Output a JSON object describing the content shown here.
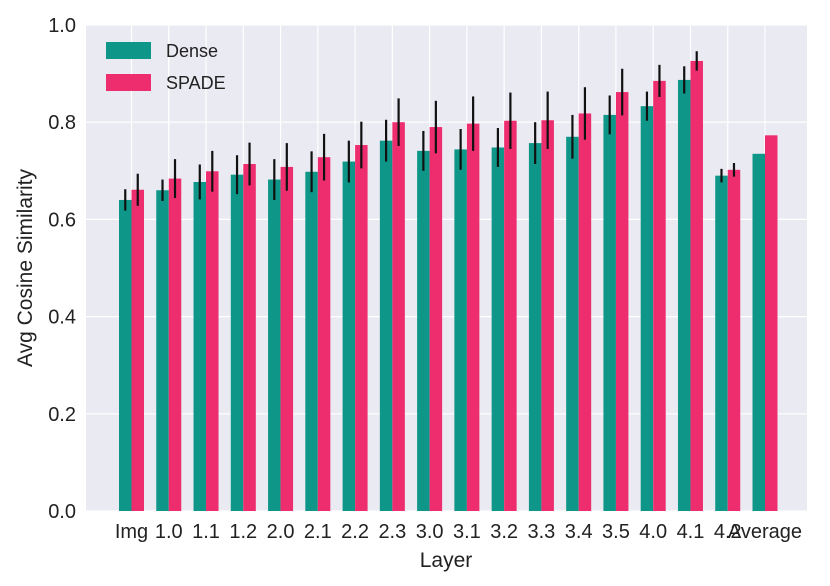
{
  "chart_data": {
    "type": "bar",
    "title": "",
    "xlabel": "Layer",
    "ylabel": "Avg Cosine Similarity",
    "ylim": [
      0,
      1.0
    ],
    "yticks": [
      "0.0",
      "0.2",
      "0.4",
      "0.6",
      "0.8",
      "1.0"
    ],
    "grid": true,
    "legend_position": "top-left",
    "categories": [
      "Img",
      "1.0",
      "1.1",
      "1.2",
      "2.0",
      "2.1",
      "2.2",
      "2.3",
      "3.0",
      "3.1",
      "3.2",
      "3.3",
      "3.4",
      "3.5",
      "4.0",
      "4.1",
      "4.2",
      "Average"
    ],
    "series": [
      {
        "name": "Dense",
        "color": "#0e9688",
        "values": [
          0.64,
          0.66,
          0.677,
          0.692,
          0.682,
          0.698,
          0.719,
          0.762,
          0.741,
          0.744,
          0.748,
          0.757,
          0.77,
          0.815,
          0.833,
          0.887,
          0.69,
          0.735
        ],
        "errors": [
          0.022,
          0.022,
          0.036,
          0.04,
          0.042,
          0.042,
          0.043,
          0.043,
          0.041,
          0.042,
          0.04,
          0.043,
          0.045,
          0.04,
          0.03,
          0.028,
          0.014,
          null
        ]
      },
      {
        "name": "SPADE",
        "color": "#ee2d6e",
        "values": [
          0.661,
          0.684,
          0.699,
          0.714,
          0.708,
          0.728,
          0.753,
          0.8,
          0.79,
          0.797,
          0.803,
          0.804,
          0.818,
          0.862,
          0.885,
          0.926,
          0.702,
          0.773
        ],
        "errors": [
          0.033,
          0.04,
          0.042,
          0.044,
          0.049,
          0.048,
          0.048,
          0.049,
          0.054,
          0.056,
          0.058,
          0.059,
          0.054,
          0.048,
          0.033,
          0.02,
          0.014,
          null
        ]
      }
    ]
  }
}
